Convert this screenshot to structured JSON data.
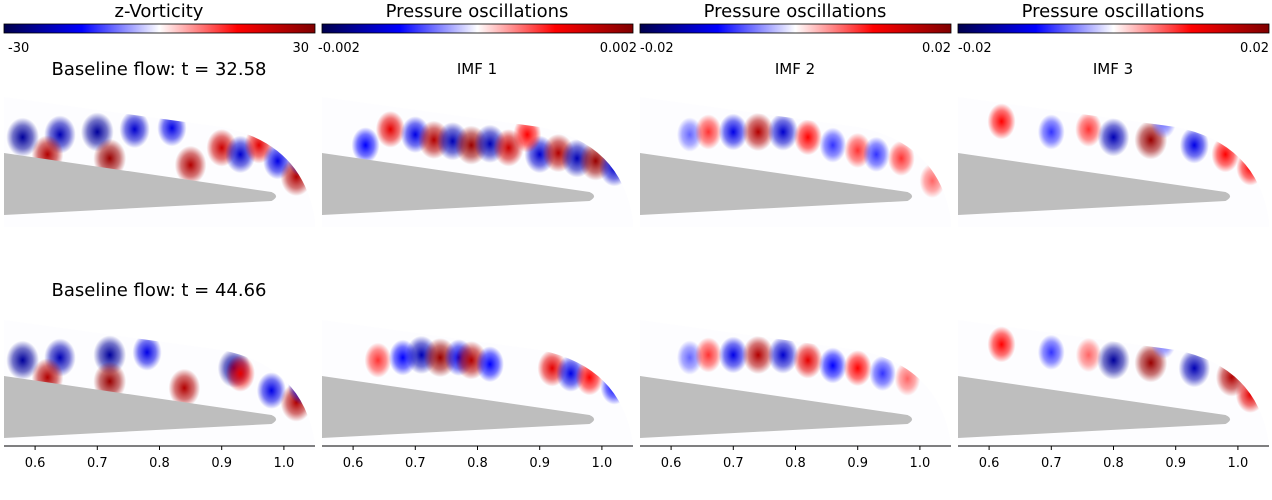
{
  "columns": [
    {
      "title": "z-Vorticity",
      "colorbar": {
        "min_label": "-30",
        "max_label": "30",
        "min": -30,
        "max": 30
      },
      "subtitle": ""
    },
    {
      "title": "Pressure oscillations",
      "colorbar": {
        "min_label": "-0.002",
        "max_label": "0.002",
        "min": -0.002,
        "max": 0.002
      },
      "subtitle": "IMF 1"
    },
    {
      "title": "Pressure oscillations",
      "colorbar": {
        "min_label": "-0.02",
        "max_label": "0.02",
        "min": -0.02,
        "max": 0.02
      },
      "subtitle": "IMF 2"
    },
    {
      "title": "Pressure oscillations",
      "colorbar": {
        "min_label": "-0.02",
        "max_label": "0.02",
        "min": -0.02,
        "max": 0.02
      },
      "subtitle": "IMF 3"
    }
  ],
  "rows": [
    {
      "label": "Baseline flow: t = 32.58"
    },
    {
      "label": "Baseline flow: t = 44.66"
    }
  ],
  "colors": {
    "negative": "#00007f",
    "neutral": "#ffffff",
    "positive": "#7f0000",
    "airfoil": "#bebebe"
  },
  "chart_data": {
    "type": "heatmap",
    "colormap": "seismic",
    "xlabel": "",
    "ylabel": "",
    "xlim": [
      0.55,
      1.05
    ],
    "xticks": [
      0.6,
      0.7,
      0.8,
      0.9,
      1.0
    ],
    "xtick_labels": [
      "0.6",
      "0.7",
      "0.8",
      "0.9",
      "1.0"
    ],
    "panels": [
      {
        "row": 0,
        "col": 0,
        "field": "z-Vorticity",
        "blobs": [
          [
            0.58,
            0.68,
            -0.9
          ],
          [
            0.64,
            0.7,
            -0.8
          ],
          [
            0.7,
            0.72,
            -0.9
          ],
          [
            0.76,
            0.74,
            -0.7
          ],
          [
            0.82,
            0.75,
            -0.6
          ],
          [
            0.62,
            0.55,
            0.8
          ],
          [
            0.72,
            0.52,
            0.9
          ],
          [
            0.85,
            0.47,
            0.8
          ],
          [
            0.9,
            0.6,
            0.7
          ],
          [
            0.93,
            0.55,
            -0.7
          ],
          [
            0.96,
            0.62,
            0.6
          ],
          [
            0.99,
            0.5,
            -0.6
          ],
          [
            1.02,
            0.38,
            0.8
          ],
          [
            1.03,
            0.52,
            -0.7
          ]
        ]
      },
      {
        "row": 0,
        "col": 1,
        "field": "IMF 1",
        "blobs": [
          [
            0.66,
            0.74,
            0.6
          ],
          [
            0.7,
            0.7,
            -0.6
          ],
          [
            0.73,
            0.66,
            0.8
          ],
          [
            0.76,
            0.65,
            -0.8
          ],
          [
            0.79,
            0.62,
            0.9
          ],
          [
            0.82,
            0.63,
            -0.8
          ],
          [
            0.85,
            0.6,
            0.7
          ],
          [
            0.9,
            0.55,
            -0.7
          ],
          [
            0.93,
            0.56,
            0.8
          ],
          [
            0.96,
            0.52,
            -0.8
          ],
          [
            0.99,
            0.5,
            0.9
          ],
          [
            1.02,
            0.45,
            -0.7
          ],
          [
            0.88,
            0.7,
            0.5
          ],
          [
            0.62,
            0.62,
            -0.5
          ]
        ]
      },
      {
        "row": 0,
        "col": 2,
        "field": "IMF 2",
        "blobs": [
          [
            0.63,
            0.7,
            -0.3
          ],
          [
            0.66,
            0.72,
            0.4
          ],
          [
            0.7,
            0.72,
            -0.6
          ],
          [
            0.74,
            0.72,
            0.8
          ],
          [
            0.78,
            0.72,
            -0.7
          ],
          [
            0.82,
            0.68,
            0.5
          ],
          [
            0.86,
            0.62,
            -0.4
          ],
          [
            0.9,
            0.58,
            0.4
          ],
          [
            0.93,
            0.55,
            -0.4
          ],
          [
            0.97,
            0.52,
            0.4
          ],
          [
            1.02,
            0.35,
            0.3
          ]
        ]
      },
      {
        "row": 0,
        "col": 3,
        "field": "IMF 3",
        "blobs": [
          [
            0.62,
            0.8,
            0.5
          ],
          [
            0.7,
            0.72,
            -0.4
          ],
          [
            0.76,
            0.74,
            0.4
          ],
          [
            0.8,
            0.68,
            -0.8
          ],
          [
            0.86,
            0.66,
            0.9
          ],
          [
            0.93,
            0.62,
            -0.6
          ],
          [
            0.98,
            0.55,
            0.5
          ],
          [
            1.02,
            0.45,
            0.5
          ],
          [
            0.88,
            0.8,
            -0.3
          ]
        ]
      },
      {
        "row": 1,
        "col": 0,
        "field": "z-Vorticity",
        "blobs": [
          [
            0.58,
            0.68,
            -0.9
          ],
          [
            0.64,
            0.7,
            -0.8
          ],
          [
            0.72,
            0.72,
            -0.9
          ],
          [
            0.78,
            0.74,
            -0.6
          ],
          [
            0.62,
            0.55,
            0.8
          ],
          [
            0.72,
            0.52,
            0.9
          ],
          [
            0.84,
            0.47,
            0.8
          ],
          [
            0.92,
            0.62,
            -0.9
          ],
          [
            0.93,
            0.58,
            0.6
          ],
          [
            0.98,
            0.45,
            -0.6
          ],
          [
            1.02,
            0.36,
            0.8
          ],
          [
            1.03,
            0.48,
            -0.6
          ]
        ]
      },
      {
        "row": 1,
        "col": 1,
        "field": "IMF 1",
        "blobs": [
          [
            0.64,
            0.68,
            0.4
          ],
          [
            0.68,
            0.7,
            -0.5
          ],
          [
            0.71,
            0.72,
            -0.8
          ],
          [
            0.74,
            0.7,
            0.9
          ],
          [
            0.77,
            0.7,
            -0.6
          ],
          [
            0.79,
            0.68,
            0.8
          ],
          [
            0.82,
            0.65,
            -0.5
          ],
          [
            0.92,
            0.62,
            0.6
          ],
          [
            0.95,
            0.58,
            -0.6
          ],
          [
            0.98,
            0.55,
            0.5
          ],
          [
            1.02,
            0.48,
            -0.5
          ]
        ]
      },
      {
        "row": 1,
        "col": 2,
        "field": "IMF 2",
        "blobs": [
          [
            0.63,
            0.7,
            -0.3
          ],
          [
            0.66,
            0.72,
            0.4
          ],
          [
            0.7,
            0.72,
            -0.6
          ],
          [
            0.74,
            0.72,
            0.8
          ],
          [
            0.78,
            0.72,
            -0.7
          ],
          [
            0.82,
            0.68,
            0.6
          ],
          [
            0.86,
            0.64,
            -0.5
          ],
          [
            0.9,
            0.62,
            0.5
          ],
          [
            0.94,
            0.58,
            -0.4
          ],
          [
            0.98,
            0.54,
            0.3
          ]
        ]
      },
      {
        "row": 1,
        "col": 3,
        "field": "IMF 3",
        "blobs": [
          [
            0.62,
            0.8,
            0.5
          ],
          [
            0.7,
            0.74,
            -0.4
          ],
          [
            0.76,
            0.72,
            0.3
          ],
          [
            0.8,
            0.68,
            -0.9
          ],
          [
            0.86,
            0.66,
            0.9
          ],
          [
            0.93,
            0.62,
            -0.8
          ],
          [
            0.99,
            0.55,
            0.8
          ],
          [
            1.02,
            0.42,
            0.6
          ],
          [
            0.88,
            0.82,
            -0.3
          ]
        ]
      }
    ]
  }
}
